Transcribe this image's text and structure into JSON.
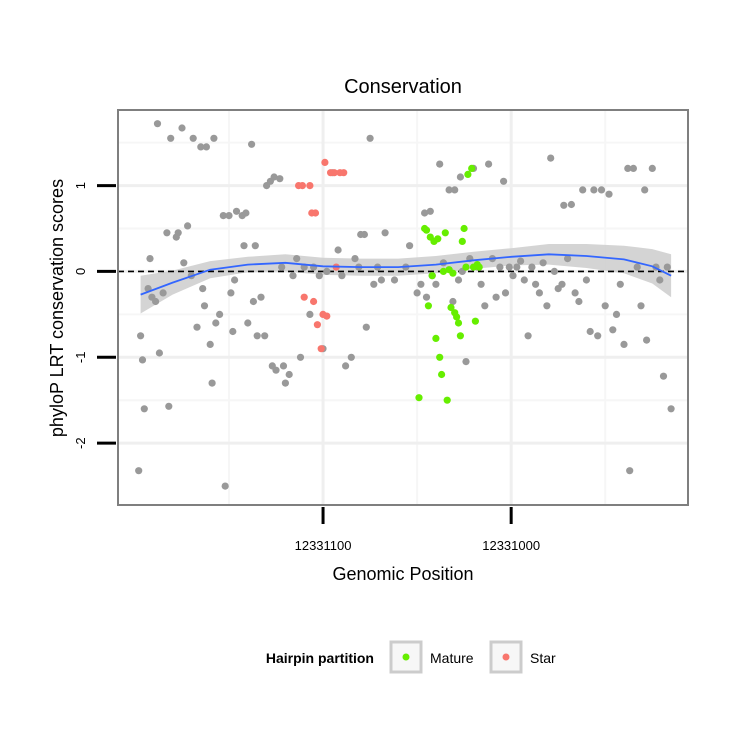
{
  "chart_data": {
    "type": "scatter",
    "title": "Conservation",
    "xlabel": "Genomic Position",
    "ylabel": "phyloP LRT conservation scores",
    "x_reversed": true,
    "xlim": [
      12331209,
      12330906
    ],
    "ylim": [
      -2.72,
      1.88
    ],
    "x_ticks": [
      {
        "value": 12331100,
        "label": "12331100"
      },
      {
        "value": 12331000,
        "label": "12331000"
      }
    ],
    "y_ticks": [
      {
        "value": -2,
        "label": "-2"
      },
      {
        "value": -1,
        "label": "-1"
      },
      {
        "value": 0,
        "label": "0"
      },
      {
        "value": 1,
        "label": "1"
      }
    ],
    "reference_line": {
      "y": 0,
      "style": "dashed"
    },
    "legend": {
      "title": "Hairpin partition",
      "position": "bottom",
      "entries": [
        {
          "label": "Mature",
          "color": "#66ee00"
        },
        {
          "label": "Star",
          "color": "#f8766d"
        }
      ]
    },
    "colors": {
      "other": "#999999",
      "mature": "#66ee00",
      "star": "#f8766d",
      "smooth": "#3366ff",
      "band": "#cccccc"
    },
    "series": [
      {
        "group": "other",
        "points": [
          [
            12331198,
            -2.32
          ],
          [
            12331196,
            -1.03
          ],
          [
            12331195,
            -1.6
          ],
          [
            12331197,
            -0.75
          ],
          [
            12331193,
            -0.2
          ],
          [
            12331192,
            0.15
          ],
          [
            12331191,
            -0.3
          ],
          [
            12331189,
            -0.35
          ],
          [
            12331187,
            -0.95
          ],
          [
            12331185,
            -0.25
          ],
          [
            12331183,
            0.45
          ],
          [
            12331182,
            -1.57
          ],
          [
            12331181,
            1.55
          ],
          [
            12331188,
            1.72
          ],
          [
            12331178,
            0.4
          ],
          [
            12331177,
            0.45
          ],
          [
            12331175,
            1.67
          ],
          [
            12331174,
            0.1
          ],
          [
            12331172,
            0.53
          ],
          [
            12331170,
            -0.05
          ],
          [
            12331169,
            1.55
          ],
          [
            12331167,
            -0.65
          ],
          [
            12331165,
            1.45
          ],
          [
            12331164,
            -0.2
          ],
          [
            12331163,
            -0.4
          ],
          [
            12331162,
            1.45
          ],
          [
            12331160,
            -0.85
          ],
          [
            12331159,
            -1.3
          ],
          [
            12331158,
            1.55
          ],
          [
            12331157,
            -0.6
          ],
          [
            12331155,
            -0.5
          ],
          [
            12331153,
            0.65
          ],
          [
            12331150,
            0.65
          ],
          [
            12331152,
            -2.5
          ],
          [
            12331149,
            -0.25
          ],
          [
            12331148,
            -0.7
          ],
          [
            12331147,
            -0.1
          ],
          [
            12331146,
            0.7
          ],
          [
            12331143,
            0.65
          ],
          [
            12331142,
            0.3
          ],
          [
            12331141,
            0.68
          ],
          [
            12331140,
            -0.6
          ],
          [
            12331138,
            1.48
          ],
          [
            12331137,
            -0.35
          ],
          [
            12331136,
            0.3
          ],
          [
            12331135,
            -0.75
          ],
          [
            12331133,
            -0.3
          ],
          [
            12331131,
            -0.75
          ],
          [
            12331130,
            1.0
          ],
          [
            12331128,
            1.05
          ],
          [
            12331127,
            -1.1
          ],
          [
            12331126,
            1.1
          ],
          [
            12331125,
            -1.15
          ],
          [
            12331123,
            1.08
          ],
          [
            12331122,
            0.05
          ],
          [
            12331121,
            -1.1
          ],
          [
            12331120,
            -1.3
          ],
          [
            12331118,
            -1.2
          ],
          [
            12331116,
            -0.05
          ],
          [
            12331114,
            0.15
          ],
          [
            12331112,
            -1.0
          ],
          [
            12331110,
            0.05
          ],
          [
            12331107,
            -0.5
          ],
          [
            12331105,
            0.05
          ],
          [
            12331102,
            -0.05
          ],
          [
            12331100,
            -0.9
          ],
          [
            12331098,
            0.0
          ],
          [
            12331095,
            1.15
          ],
          [
            12331092,
            0.25
          ],
          [
            12331090,
            -0.05
          ],
          [
            12331088,
            -1.1
          ],
          [
            12331085,
            -1.0
          ],
          [
            12331083,
            0.15
          ],
          [
            12331081,
            0.05
          ],
          [
            12331080,
            0.43
          ],
          [
            12331078,
            0.43
          ],
          [
            12331077,
            -0.65
          ],
          [
            12331075,
            1.55
          ],
          [
            12331073,
            -0.15
          ],
          [
            12331071,
            0.05
          ],
          [
            12331069,
            -0.1
          ],
          [
            12331067,
            0.45
          ],
          [
            12331062,
            -0.1
          ],
          [
            12331056,
            0.05
          ],
          [
            12331054,
            0.3
          ],
          [
            12331050,
            -0.25
          ],
          [
            12331048,
            -0.15
          ],
          [
            12331046,
            0.68
          ],
          [
            12331045,
            -0.3
          ],
          [
            12331043,
            0.7
          ],
          [
            12331042,
            -0.05
          ],
          [
            12331040,
            -0.15
          ],
          [
            12331038,
            1.25
          ],
          [
            12331036,
            0.1
          ],
          [
            12331033,
            0.95
          ],
          [
            12331031,
            -0.35
          ],
          [
            12331030,
            0.95
          ],
          [
            12331028,
            -0.1
          ],
          [
            12331027,
            1.1
          ],
          [
            12331026,
            0.0
          ],
          [
            12331024,
            -1.05
          ],
          [
            12331022,
            0.15
          ],
          [
            12331020,
            1.2
          ],
          [
            12331018,
            0.05
          ],
          [
            12331016,
            -0.15
          ],
          [
            12331014,
            -0.4
          ],
          [
            12331012,
            1.25
          ],
          [
            12331010,
            0.15
          ],
          [
            12331008,
            -0.3
          ],
          [
            12331006,
            0.05
          ],
          [
            12331004,
            1.05
          ],
          [
            12331003,
            -0.25
          ],
          [
            12331001,
            0.05
          ],
          [
            12330999,
            -0.05
          ],
          [
            12330997,
            0.05
          ],
          [
            12330995,
            0.12
          ],
          [
            12330993,
            -0.1
          ],
          [
            12330991,
            -0.75
          ],
          [
            12330989,
            0.05
          ],
          [
            12330987,
            -0.15
          ],
          [
            12330985,
            -0.25
          ],
          [
            12330983,
            0.1
          ],
          [
            12330981,
            -0.4
          ],
          [
            12330979,
            1.32
          ],
          [
            12330977,
            0.0
          ],
          [
            12330975,
            -0.2
          ],
          [
            12330973,
            -0.15
          ],
          [
            12330972,
            0.77
          ],
          [
            12330970,
            0.15
          ],
          [
            12330968,
            0.78
          ],
          [
            12330966,
            -0.25
          ],
          [
            12330964,
            -0.35
          ],
          [
            12330962,
            0.95
          ],
          [
            12330960,
            -0.1
          ],
          [
            12330958,
            -0.7
          ],
          [
            12330956,
            0.95
          ],
          [
            12330954,
            -0.75
          ],
          [
            12330952,
            0.95
          ],
          [
            12330950,
            -0.4
          ],
          [
            12330948,
            0.9
          ],
          [
            12330946,
            -0.68
          ],
          [
            12330944,
            -0.5
          ],
          [
            12330942,
            -0.15
          ],
          [
            12330940,
            -0.85
          ],
          [
            12330938,
            1.2
          ],
          [
            12330937,
            -2.32
          ],
          [
            12330935,
            1.2
          ],
          [
            12330933,
            0.05
          ],
          [
            12330931,
            -0.4
          ],
          [
            12330929,
            0.95
          ],
          [
            12330928,
            -0.8
          ],
          [
            12330925,
            1.2
          ],
          [
            12330923,
            0.05
          ],
          [
            12330921,
            -0.1
          ],
          [
            12330919,
            -1.22
          ],
          [
            12330917,
            0.05
          ],
          [
            12330915,
            -1.6
          ]
        ]
      },
      {
        "group": "mature",
        "points": [
          [
            12331049,
            -1.47
          ],
          [
            12331046,
            0.5
          ],
          [
            12331045,
            0.48
          ],
          [
            12331044,
            -0.4
          ],
          [
            12331043,
            0.4
          ],
          [
            12331042,
            -0.05
          ],
          [
            12331041,
            0.35
          ],
          [
            12331040,
            -0.78
          ],
          [
            12331039,
            0.38
          ],
          [
            12331038,
            -1.0
          ],
          [
            12331037,
            -1.2
          ],
          [
            12331036,
            0.0
          ],
          [
            12331035,
            0.45
          ],
          [
            12331034,
            -1.5
          ],
          [
            12331033,
            0.02
          ],
          [
            12331032,
            -0.42
          ],
          [
            12331031,
            -0.02
          ],
          [
            12331030,
            -0.48
          ],
          [
            12331029,
            -0.53
          ],
          [
            12331028,
            -0.6
          ],
          [
            12331027,
            -0.75
          ],
          [
            12331026,
            0.35
          ],
          [
            12331025,
            0.5
          ],
          [
            12331024,
            0.05
          ],
          [
            12331023,
            1.13
          ],
          [
            12331021,
            1.2
          ],
          [
            12331020,
            0.05
          ],
          [
            12331019,
            -0.58
          ],
          [
            12331018,
            0.08
          ],
          [
            12331017,
            0.05
          ]
        ]
      },
      {
        "group": "star",
        "points": [
          [
            12331113,
            1.0
          ],
          [
            12331111,
            1.0
          ],
          [
            12331110,
            -0.3
          ],
          [
            12331107,
            1.0
          ],
          [
            12331106,
            0.68
          ],
          [
            12331105,
            -0.35
          ],
          [
            12331104,
            0.68
          ],
          [
            12331103,
            -0.62
          ],
          [
            12331101,
            -0.9
          ],
          [
            12331100,
            -0.5
          ],
          [
            12331099,
            1.27
          ],
          [
            12331098,
            -0.52
          ],
          [
            12331096,
            1.15
          ],
          [
            12331094,
            1.15
          ],
          [
            12331093,
            0.05
          ],
          [
            12331091,
            1.15
          ],
          [
            12331089,
            1.15
          ]
        ]
      }
    ],
    "smooth": {
      "points": [
        [
          12331197,
          -0.27
        ],
        [
          12331180,
          -0.13
        ],
        [
          12331160,
          0.02
        ],
        [
          12331140,
          0.08
        ],
        [
          12331120,
          0.1
        ],
        [
          12331100,
          0.06
        ],
        [
          12331080,
          0.05
        ],
        [
          12331060,
          0.05
        ],
        [
          12331040,
          0.08
        ],
        [
          12331020,
          0.13
        ],
        [
          12331000,
          0.17
        ],
        [
          12330980,
          0.2
        ],
        [
          12330960,
          0.18
        ],
        [
          12330940,
          0.14
        ],
        [
          12330925,
          0.06
        ],
        [
          12330915,
          -0.05
        ]
      ],
      "se_halfwidth": [
        0.22,
        0.14,
        0.1,
        0.09,
        0.1,
        0.1,
        0.1,
        0.1,
        0.1,
        0.1,
        0.1,
        0.12,
        0.14,
        0.16,
        0.2,
        0.25
      ]
    }
  }
}
